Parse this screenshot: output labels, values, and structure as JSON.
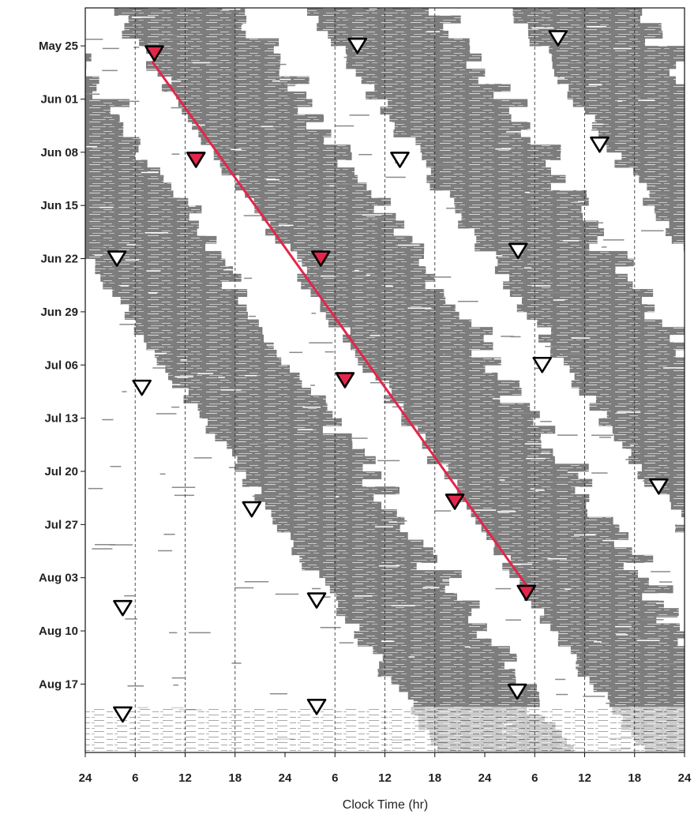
{
  "chart_data": {
    "type": "scatter",
    "title": "",
    "xlabel": "Clock Time (hr)",
    "ylabel": "",
    "x_ticks": [
      "24",
      "6",
      "12",
      "18",
      "24",
      "6",
      "12",
      "18",
      "24",
      "6",
      "12",
      "18",
      "24"
    ],
    "x_range": [
      0,
      72
    ],
    "y_ticks": [
      "May 25",
      "Jun 01",
      "Jun 08",
      "Jun 15",
      "Jun 22",
      "Jun 29",
      "Jul 06",
      "Jul 13",
      "Jul 20",
      "Jul 27",
      "Aug 03",
      "Aug 10",
      "Aug 17"
    ],
    "y_range": [
      "2024-05-20",
      "2024-08-26"
    ],
    "grid": true,
    "background": "triple-plotted actogram of activity (gray raster)",
    "colors": {
      "activity": "#7a7a7a",
      "highlight": "#e3264b",
      "marker_open": "#ffffff",
      "marker_edge": "#000000"
    },
    "series": [
      {
        "marker": "open-triangle-down",
        "points": [
          {
            "x": 3.8,
            "y": "2024-06-22"
          },
          {
            "x": 6.8,
            "y": "2024-07-09"
          },
          {
            "x": 4.5,
            "y": "2024-08-07"
          },
          {
            "x": 4.5,
            "y": "2024-08-21"
          },
          {
            "x": 20.0,
            "y": "2024-07-25"
          },
          {
            "x": 27.8,
            "y": "2024-08-06"
          },
          {
            "x": 27.8,
            "y": "2024-08-20"
          },
          {
            "x": 32.7,
            "y": "2024-05-25"
          },
          {
            "x": 37.8,
            "y": "2024-06-09"
          },
          {
            "x": 52.0,
            "y": "2024-06-21"
          },
          {
            "x": 54.9,
            "y": "2024-07-06"
          },
          {
            "x": 51.9,
            "y": "2024-08-18"
          },
          {
            "x": 56.8,
            "y": "2024-05-24"
          },
          {
            "x": 61.8,
            "y": "2024-06-07"
          },
          {
            "x": 68.9,
            "y": "2024-07-22"
          }
        ]
      },
      {
        "marker": "filled-triangle-down",
        "points": [
          {
            "x": 8.3,
            "y": "2024-05-26"
          },
          {
            "x": 13.3,
            "y": "2024-06-09"
          },
          {
            "x": 28.3,
            "y": "2024-06-22"
          },
          {
            "x": 31.2,
            "y": "2024-07-08"
          },
          {
            "x": 44.4,
            "y": "2024-07-24"
          },
          {
            "x": 53.0,
            "y": "2024-08-05"
          }
        ]
      }
    ],
    "fit_line": {
      "from": {
        "x": 8.0,
        "y": "2024-05-27"
      },
      "to": {
        "x": 53.0,
        "y": "2024-08-04"
      }
    }
  }
}
